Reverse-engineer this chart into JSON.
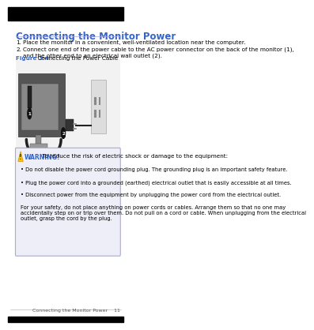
{
  "bg_color": "#ffffff",
  "top_bar_color": "#000000",
  "bottom_bar_color": "#000000",
  "title": "Connecting the Monitor Power",
  "title_color": "#3366cc",
  "title_fontsize": 8.5,
  "body_text_color": "#000000",
  "body_fontsize": 5.2,
  "step1": "Place the monitor in a convenient, well-ventilated location near the computer.",
  "step2": "Connect one end of the power cable to the AC power connector on the back of the monitor (1),\nand the other end to an electrical wall outlet (2).",
  "figure_label": "Figure 3-4",
  "figure_label_color": "#3366cc",
  "figure_desc": "  Connecting the Power Cable",
  "warning_title": "WARNING!",
  "warning_title_color": "#3366cc",
  "warning_intro": "  To reduce the risk of electric shock or damage to the equipment:",
  "warning_bullets": [
    "• Do not disable the power cord grounding plug. The grounding plug is an important safety feature.",
    "• Plug the power cord into a grounded (earthed) electrical outlet that is easily accessible at all times.",
    "• Disconnect power from the equipment by unplugging the power cord from the electrical outlet.",
    "For your safety, do not place anything on power cords or cables. Arrange them so that no one may\naccidentally step on or trip over them. Do not pull on a cord or cable. When unplugging from the electrical\noutlet, grasp the cord by the plug."
  ],
  "footer_text": "Connecting the Monitor Power    11",
  "footer_color": "#555555",
  "footer_fontsize": 4.5,
  "warning_box_color": "#eeeef8",
  "warning_border_color": "#aaaacc",
  "ml": 0.07,
  "mr": 0.97
}
